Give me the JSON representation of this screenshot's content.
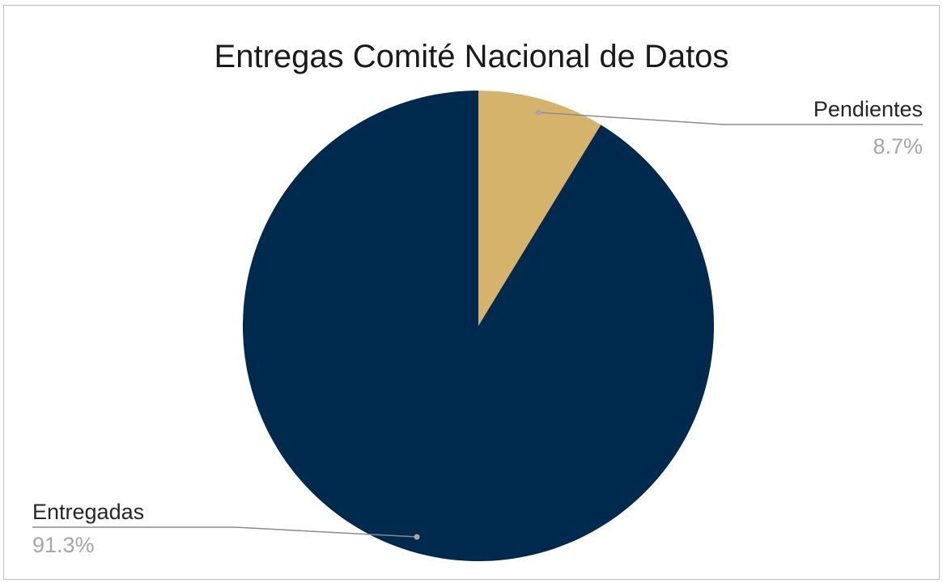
{
  "chart_data": {
    "type": "pie",
    "title": "Entregas Comité Nacional de Datos",
    "start_angle_deg": 0,
    "direction": "clockwise",
    "legend": "none",
    "slices": [
      {
        "label": "Pendientes",
        "value": 8.7,
        "value_label": "8.7%",
        "color": "#d6b36b"
      },
      {
        "label": "Entregadas",
        "value": 91.3,
        "value_label": "91.3%",
        "color": "#002a4d"
      }
    ]
  }
}
